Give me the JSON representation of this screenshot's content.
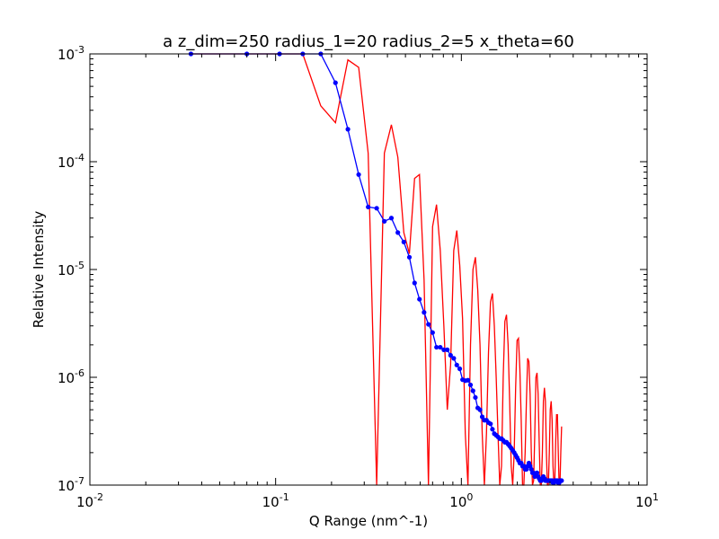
{
  "chart_data": {
    "type": "line",
    "title": "a z_dim=250 radius_1=20 radius_2=5 x_theta=60",
    "xlabel": "Q Range (nm^-1)",
    "ylabel": "Relative Intensity",
    "xscale": "log",
    "yscale": "log",
    "xlim": [
      0.01,
      10
    ],
    "ylim": [
      1e-07,
      0.001
    ],
    "grid": false,
    "x_ticks": [
      {
        "base": "10",
        "exp": "-2",
        "value": 0.01
      },
      {
        "base": "10",
        "exp": "-1",
        "value": 0.1
      },
      {
        "base": "10",
        "exp": "0",
        "value": 1
      },
      {
        "base": "10",
        "exp": "1",
        "value": 10
      }
    ],
    "y_ticks": [
      {
        "base": "10",
        "exp": "-7",
        "value": 1e-07
      },
      {
        "base": "10",
        "exp": "-6",
        "value": 1e-06
      },
      {
        "base": "10",
        "exp": "-5",
        "value": 1e-05
      },
      {
        "base": "10",
        "exp": "-4",
        "value": 0.0001
      },
      {
        "base": "10",
        "exp": "-3",
        "value": 0.001
      }
    ],
    "series": [
      {
        "color": "#ff0000",
        "marker": "none",
        "x": [
          0.035,
          0.07,
          0.105,
          0.14,
          0.175,
          0.21,
          0.245,
          0.28,
          0.315,
          0.35,
          0.385,
          0.42,
          0.455,
          0.49,
          0.525,
          0.56,
          0.595,
          0.63,
          0.665,
          0.7,
          0.735,
          0.77,
          0.805,
          0.84,
          0.875,
          0.91,
          0.945,
          0.98,
          1.015,
          1.05,
          1.085,
          1.12,
          1.155,
          1.19,
          1.225,
          1.26,
          1.295,
          1.33,
          1.365,
          1.4,
          1.435,
          1.47,
          1.505,
          1.54,
          1.575,
          1.61,
          1.645,
          1.68,
          1.715,
          1.75,
          1.785,
          1.82,
          1.855,
          1.89,
          1.925,
          1.96,
          1.995,
          2.03,
          2.065,
          2.1,
          2.135,
          2.17,
          2.205,
          2.24,
          2.275,
          2.31,
          2.345,
          2.38,
          2.415,
          2.45,
          2.485,
          2.52,
          2.555,
          2.59,
          2.625,
          2.66,
          2.695,
          2.73,
          2.765,
          2.8,
          2.835,
          2.87,
          2.905,
          2.94,
          2.975,
          3.01,
          3.045,
          3.08,
          3.115,
          3.15,
          3.185,
          3.22,
          3.255,
          3.29,
          3.325,
          3.36,
          3.395,
          3.43,
          3.465
        ],
        "y": [
          0.001,
          0.001,
          0.001,
          0.001,
          0.00033,
          0.00023,
          0.00088,
          0.00075,
          0.00012,
          1e-07,
          0.00012,
          0.00022,
          0.00011,
          2.2e-05,
          1.4e-05,
          7e-05,
          7.6e-05,
          8e-06,
          1e-07,
          2.5e-05,
          4e-05,
          1.5e-05,
          3e-06,
          5e-07,
          1.3e-06,
          1.5e-05,
          2.3e-05,
          1.1e-05,
          3.5e-06,
          3e-07,
          1e-07,
          2e-06,
          1e-05,
          1.3e-05,
          6.5e-06,
          2e-06,
          3e-07,
          1e-07,
          3e-07,
          1.7e-06,
          5e-06,
          6e-06,
          3e-06,
          1e-06,
          3e-07,
          1e-07,
          1.5e-07,
          1e-06,
          3.3e-06,
          3.8e-06,
          2e-06,
          6e-07,
          1.5e-07,
          1e-07,
          2e-07,
          8e-07,
          2.2e-06,
          2.3e-06,
          1.2e-06,
          4e-07,
          1e-07,
          1e-07,
          2e-07,
          6e-07,
          1.5e-06,
          1.4e-06,
          7e-07,
          2e-07,
          1e-07,
          1.1e-07,
          3e-07,
          1e-06,
          1.1e-06,
          7e-07,
          2.5e-07,
          1e-07,
          1e-07,
          2e-07,
          6e-07,
          8e-07,
          6e-07,
          2e-07,
          1e-07,
          1e-07,
          2e-07,
          5e-07,
          6e-07,
          4e-07,
          1.5e-07,
          1e-07,
          1.1e-07,
          2.5e-07,
          4.5e-07,
          4.5e-07,
          2e-07,
          1e-07,
          1e-07,
          2e-07,
          3.5e-07
        ]
      },
      {
        "color": "#0000ff",
        "marker": "circle",
        "x": [
          0.035,
          0.07,
          0.105,
          0.14,
          0.175,
          0.21,
          0.245,
          0.28,
          0.315,
          0.35,
          0.385,
          0.42,
          0.455,
          0.49,
          0.525,
          0.56,
          0.595,
          0.63,
          0.665,
          0.7,
          0.735,
          0.77,
          0.805,
          0.84,
          0.875,
          0.91,
          0.945,
          0.98,
          1.015,
          1.05,
          1.085,
          1.12,
          1.155,
          1.19,
          1.225,
          1.26,
          1.295,
          1.33,
          1.365,
          1.4,
          1.435,
          1.47,
          1.505,
          1.54,
          1.575,
          1.61,
          1.645,
          1.68,
          1.715,
          1.75,
          1.785,
          1.82,
          1.855,
          1.89,
          1.925,
          1.96,
          1.995,
          2.03,
          2.065,
          2.1,
          2.135,
          2.17,
          2.205,
          2.24,
          2.275,
          2.31,
          2.345,
          2.38,
          2.415,
          2.45,
          2.485,
          2.52,
          2.555,
          2.59,
          2.625,
          2.66,
          2.695,
          2.73,
          2.765,
          2.8,
          2.835,
          2.87,
          2.905,
          2.94,
          2.975,
          3.01,
          3.045,
          3.08,
          3.115,
          3.15,
          3.185,
          3.22,
          3.255,
          3.29,
          3.325,
          3.36,
          3.395,
          3.43,
          3.465
        ],
        "y": [
          0.001,
          0.001,
          0.001,
          0.001,
          0.001,
          0.00054,
          0.0002,
          7.6e-05,
          3.8e-05,
          3.7e-05,
          2.8e-05,
          3e-05,
          2.2e-05,
          1.8e-05,
          1.3e-05,
          7.5e-06,
          5.3e-06,
          4e-06,
          3.1e-06,
          2.6e-06,
          1.9e-06,
          1.9e-06,
          1.8e-06,
          1.8e-06,
          1.6e-06,
          1.5e-06,
          1.3e-06,
          1.2e-06,
          9.5e-07,
          9.3e-07,
          9.4e-07,
          8.5e-07,
          7.5e-07,
          6.5e-07,
          5.2e-07,
          5e-07,
          4.3e-07,
          4e-07,
          4e-07,
          3.8e-07,
          3.7e-07,
          3.3e-07,
          3e-07,
          2.9e-07,
          2.8e-07,
          2.7e-07,
          2.7e-07,
          2.6e-07,
          2.5e-07,
          2.5e-07,
          2.4e-07,
          2.3e-07,
          2.2e-07,
          2.1e-07,
          2e-07,
          1.9e-07,
          1.8e-07,
          1.7e-07,
          1.6e-07,
          1.6e-07,
          1.5e-07,
          1.5e-07,
          1.4e-07,
          1.4e-07,
          1.5e-07,
          1.6e-07,
          1.5e-07,
          1.4e-07,
          1.3e-07,
          1.3e-07,
          1.2e-07,
          1.25e-07,
          1.3e-07,
          1.2e-07,
          1.15e-07,
          1.1e-07,
          1.1e-07,
          1.15e-07,
          1.2e-07,
          1.15e-07,
          1.1e-07,
          1.1e-07,
          1.1e-07,
          1.1e-07,
          1.1e-07,
          1.1e-07,
          1.1e-07,
          1.1e-07,
          1.05e-07,
          1.05e-07,
          1.1e-07,
          1.1e-07,
          1.1e-07,
          1.1e-07,
          1.05e-07,
          1.05e-07,
          1.1e-07,
          1.1e-07,
          1.1e-07
        ]
      }
    ]
  }
}
